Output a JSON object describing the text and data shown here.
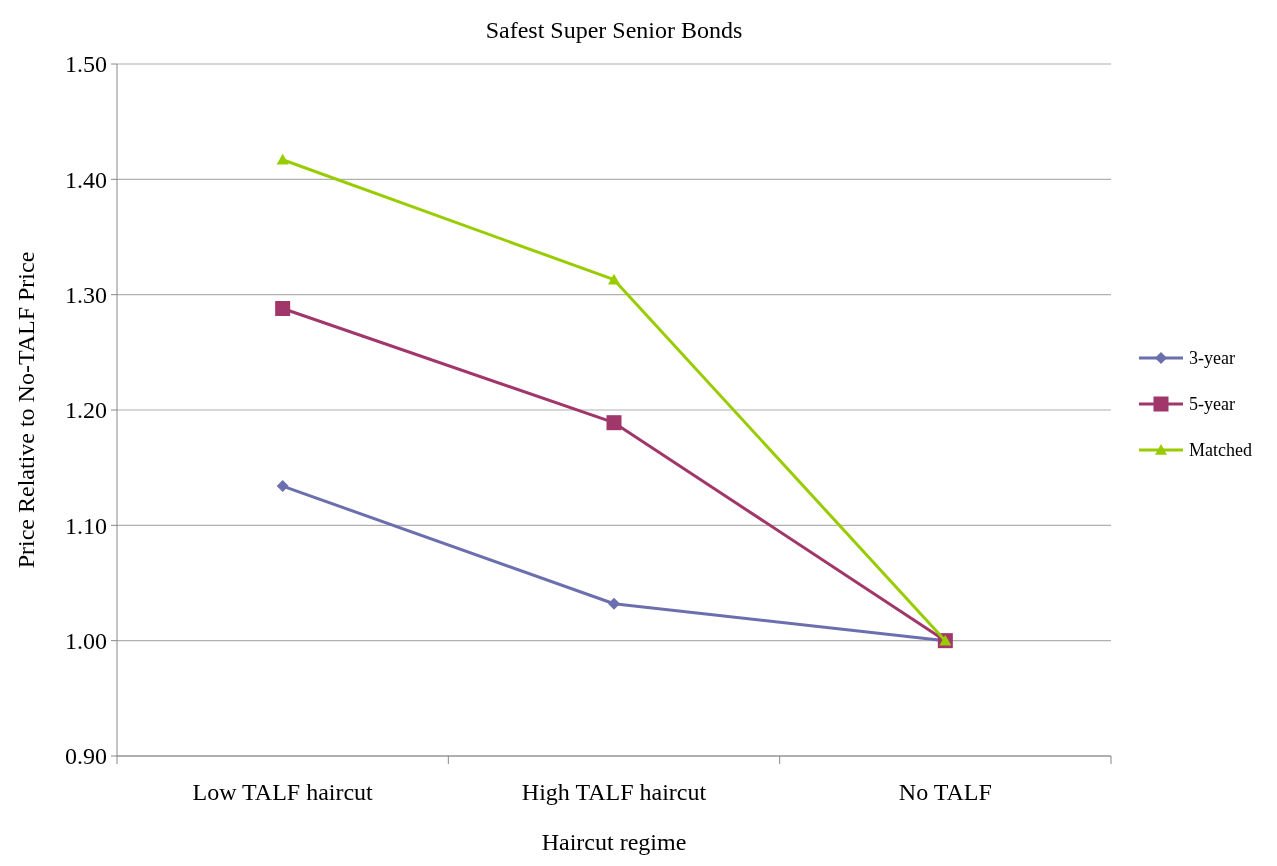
{
  "chart_data": {
    "type": "line",
    "title": "Safest Super Senior Bonds",
    "xlabel": "Haircut regime",
    "ylabel": "Price Relative to No-TALF Price",
    "categories": [
      "Low TALF haircut",
      "High TALF haircut",
      "No TALF"
    ],
    "series": [
      {
        "name": "3-year",
        "color": "#6b6fad",
        "marker": "diamond",
        "values": [
          1.134,
          1.032,
          1.0
        ]
      },
      {
        "name": "5-year",
        "color": "#a0366a",
        "marker": "square",
        "values": [
          1.288,
          1.189,
          1.0
        ]
      },
      {
        "name": "Matched",
        "color": "#99cc00",
        "marker": "triangle",
        "values": [
          1.417,
          1.313,
          1.0
        ]
      }
    ],
    "ylim": [
      0.9,
      1.5
    ],
    "yticks": [
      {
        "value": 0.9,
        "label": "0.90"
      },
      {
        "value": 1.0,
        "label": "1.00"
      },
      {
        "value": 1.1,
        "label": "1.10"
      },
      {
        "value": 1.2,
        "label": "1.20"
      },
      {
        "value": 1.3,
        "label": "1.30"
      },
      {
        "value": 1.4,
        "label": "1.40"
      },
      {
        "value": 1.5,
        "label": "1.50"
      }
    ],
    "grid": "y",
    "legend": "right",
    "line_style": "solid"
  }
}
